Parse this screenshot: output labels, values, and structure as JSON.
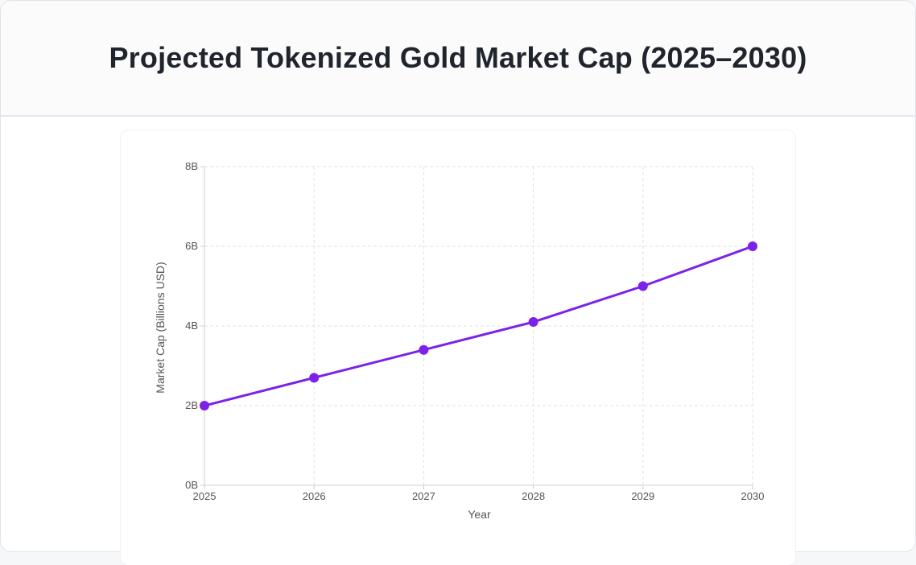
{
  "header": {
    "title": "Projected Tokenized Gold Market Cap (2025–2030)"
  },
  "colors": {
    "line": "#7c22e8",
    "point": "#7c22e8",
    "grid": "#e2e2e2",
    "axis": "#cfcfcf",
    "tick_text": "#555555"
  },
  "chart_data": {
    "type": "line",
    "title": "",
    "xlabel": "Year",
    "ylabel": "Market Cap (Billions USD)",
    "x": [
      "2025",
      "2026",
      "2027",
      "2028",
      "2029",
      "2030"
    ],
    "series": [
      {
        "values": [
          2.0,
          2.7,
          3.4,
          4.1,
          5.0,
          6.0
        ]
      }
    ],
    "ylim": [
      0,
      8
    ],
    "yticks": [
      0,
      2,
      4,
      6,
      8
    ],
    "ytick_labels": [
      "0B",
      "2B",
      "4B",
      "6B",
      "8B"
    ],
    "grid": true,
    "grid_style": "dashed",
    "legend": "none"
  }
}
